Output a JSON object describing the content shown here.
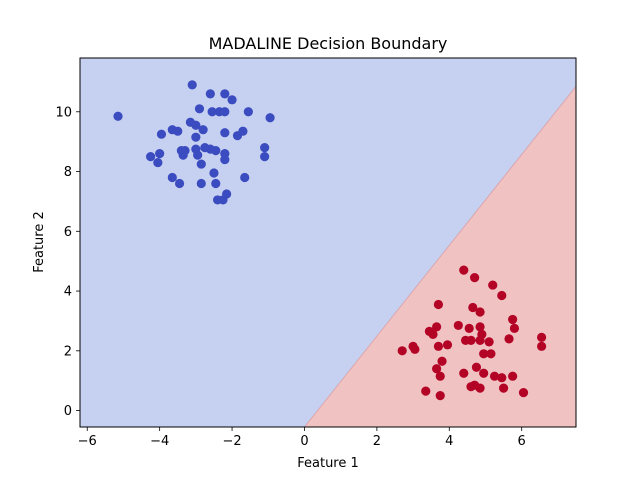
{
  "chart_data": {
    "type": "scatter",
    "title": "MADALINE Decision Boundary",
    "xlabel": "Feature 1",
    "ylabel": "Feature 2",
    "xlim": [
      -6.2,
      7.5
    ],
    "ylim": [
      -0.55,
      11.8
    ],
    "x_ticks": [
      -6,
      -4,
      -2,
      0,
      2,
      4,
      6
    ],
    "y_ticks": [
      0,
      2,
      4,
      6,
      8,
      10
    ],
    "grid": false,
    "legend": "none",
    "decision_boundary": {
      "points": [
        [
          0.0,
          -0.55
        ],
        [
          7.5,
          10.85
        ]
      ],
      "region_above_color": "#c6d0f0",
      "region_below_color": "#f0c2c2"
    },
    "series": [
      {
        "color": "#3b4cc0",
        "points": [
          [
            -5.15,
            9.85
          ],
          [
            -3.1,
            10.9
          ],
          [
            -2.6,
            10.6
          ],
          [
            -2.2,
            10.6
          ],
          [
            -2.0,
            10.4
          ],
          [
            -2.9,
            10.1
          ],
          [
            -2.55,
            10.0
          ],
          [
            -2.35,
            10.0
          ],
          [
            -2.2,
            10.0
          ],
          [
            -1.55,
            10.0
          ],
          [
            -0.95,
            9.8
          ],
          [
            -3.15,
            9.65
          ],
          [
            -3.65,
            9.4
          ],
          [
            -3.5,
            9.35
          ],
          [
            -2.8,
            9.4
          ],
          [
            -2.2,
            9.3
          ],
          [
            -1.7,
            9.35
          ],
          [
            -1.85,
            9.2
          ],
          [
            -3.95,
            9.25
          ],
          [
            -3.0,
            9.55
          ],
          [
            -3.0,
            9.15
          ],
          [
            -3.3,
            8.7
          ],
          [
            -3.0,
            8.75
          ],
          [
            -2.75,
            8.8
          ],
          [
            -2.6,
            8.75
          ],
          [
            -2.45,
            8.7
          ],
          [
            -2.2,
            8.6
          ],
          [
            -3.4,
            8.7
          ],
          [
            -3.35,
            8.55
          ],
          [
            -2.95,
            8.55
          ],
          [
            -4.25,
            8.5
          ],
          [
            -4.0,
            8.6
          ],
          [
            -4.05,
            8.3
          ],
          [
            -2.2,
            8.4
          ],
          [
            -2.85,
            8.25
          ],
          [
            -1.1,
            8.8
          ],
          [
            -1.1,
            8.5
          ],
          [
            -2.5,
            7.95
          ],
          [
            -3.65,
            7.8
          ],
          [
            -3.45,
            7.6
          ],
          [
            -2.85,
            7.6
          ],
          [
            -2.45,
            7.6
          ],
          [
            -1.65,
            7.8
          ],
          [
            -2.15,
            7.25
          ],
          [
            -2.4,
            7.05
          ],
          [
            -2.25,
            7.05
          ]
        ]
      },
      {
        "color": "#b40426",
        "points": [
          [
            4.4,
            4.7
          ],
          [
            4.7,
            4.45
          ],
          [
            5.2,
            4.2
          ],
          [
            5.45,
            3.85
          ],
          [
            3.7,
            3.55
          ],
          [
            4.65,
            3.45
          ],
          [
            4.85,
            3.3
          ],
          [
            5.75,
            3.05
          ],
          [
            4.25,
            2.85
          ],
          [
            4.85,
            2.8
          ],
          [
            5.8,
            2.75
          ],
          [
            3.65,
            2.8
          ],
          [
            4.55,
            2.75
          ],
          [
            3.45,
            2.65
          ],
          [
            3.55,
            2.55
          ],
          [
            4.9,
            2.55
          ],
          [
            6.55,
            2.45
          ],
          [
            4.45,
            2.35
          ],
          [
            4.6,
            2.35
          ],
          [
            4.85,
            2.35
          ],
          [
            5.1,
            2.3
          ],
          [
            5.65,
            2.4
          ],
          [
            3.95,
            2.2
          ],
          [
            3.0,
            2.15
          ],
          [
            3.7,
            2.15
          ],
          [
            3.05,
            2.05
          ],
          [
            2.7,
            2.0
          ],
          [
            4.95,
            1.9
          ],
          [
            5.15,
            1.9
          ],
          [
            6.55,
            2.15
          ],
          [
            3.8,
            1.65
          ],
          [
            4.75,
            1.45
          ],
          [
            3.65,
            1.4
          ],
          [
            4.95,
            1.25
          ],
          [
            4.4,
            1.25
          ],
          [
            3.75,
            1.15
          ],
          [
            5.25,
            1.15
          ],
          [
            5.45,
            1.1
          ],
          [
            5.75,
            1.15
          ],
          [
            4.7,
            0.85
          ],
          [
            4.6,
            0.8
          ],
          [
            4.85,
            0.75
          ],
          [
            5.5,
            0.75
          ],
          [
            3.35,
            0.65
          ],
          [
            6.05,
            0.6
          ],
          [
            3.75,
            0.5
          ]
        ]
      }
    ]
  }
}
